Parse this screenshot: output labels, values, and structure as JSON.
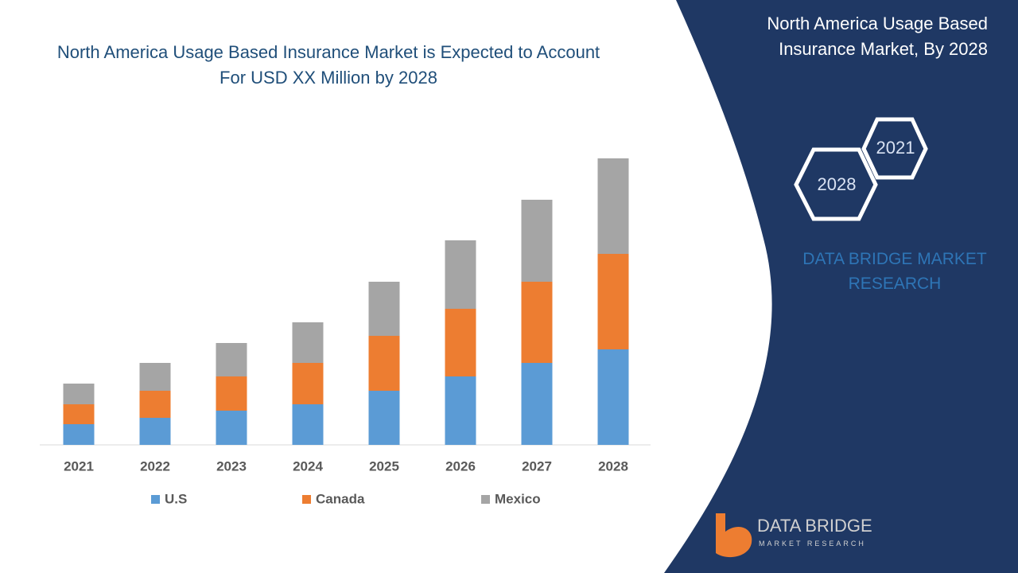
{
  "panel": {
    "title": "North America Usage Based Insurance Market, By 2028",
    "hex_labels": [
      "2021",
      "2028"
    ],
    "brand": "DATA BRIDGE MARKET RESEARCH"
  },
  "logo": {
    "name": "DATA BRIDGE",
    "tagline": "MARKET RESEARCH"
  },
  "chart_data": {
    "type": "bar",
    "stacked": true,
    "title": "North America Usage Based Insurance Market is Expected to Account For USD XX Million by 2028",
    "categories": [
      "2021",
      "2022",
      "2023",
      "2024",
      "2025",
      "2026",
      "2027",
      "2028"
    ],
    "series": [
      {
        "name": "U.S",
        "color": "#5b9bd5",
        "values": [
          26,
          34,
          43,
          51,
          68,
          86,
          103,
          120
        ]
      },
      {
        "name": "Canada",
        "color": "#ed7d31",
        "values": [
          25,
          34,
          43,
          52,
          69,
          85,
          102,
          120
        ]
      },
      {
        "name": "Mexico",
        "color": "#a5a5a5",
        "values": [
          26,
          35,
          42,
          51,
          68,
          86,
          103,
          120
        ]
      }
    ]
  }
}
